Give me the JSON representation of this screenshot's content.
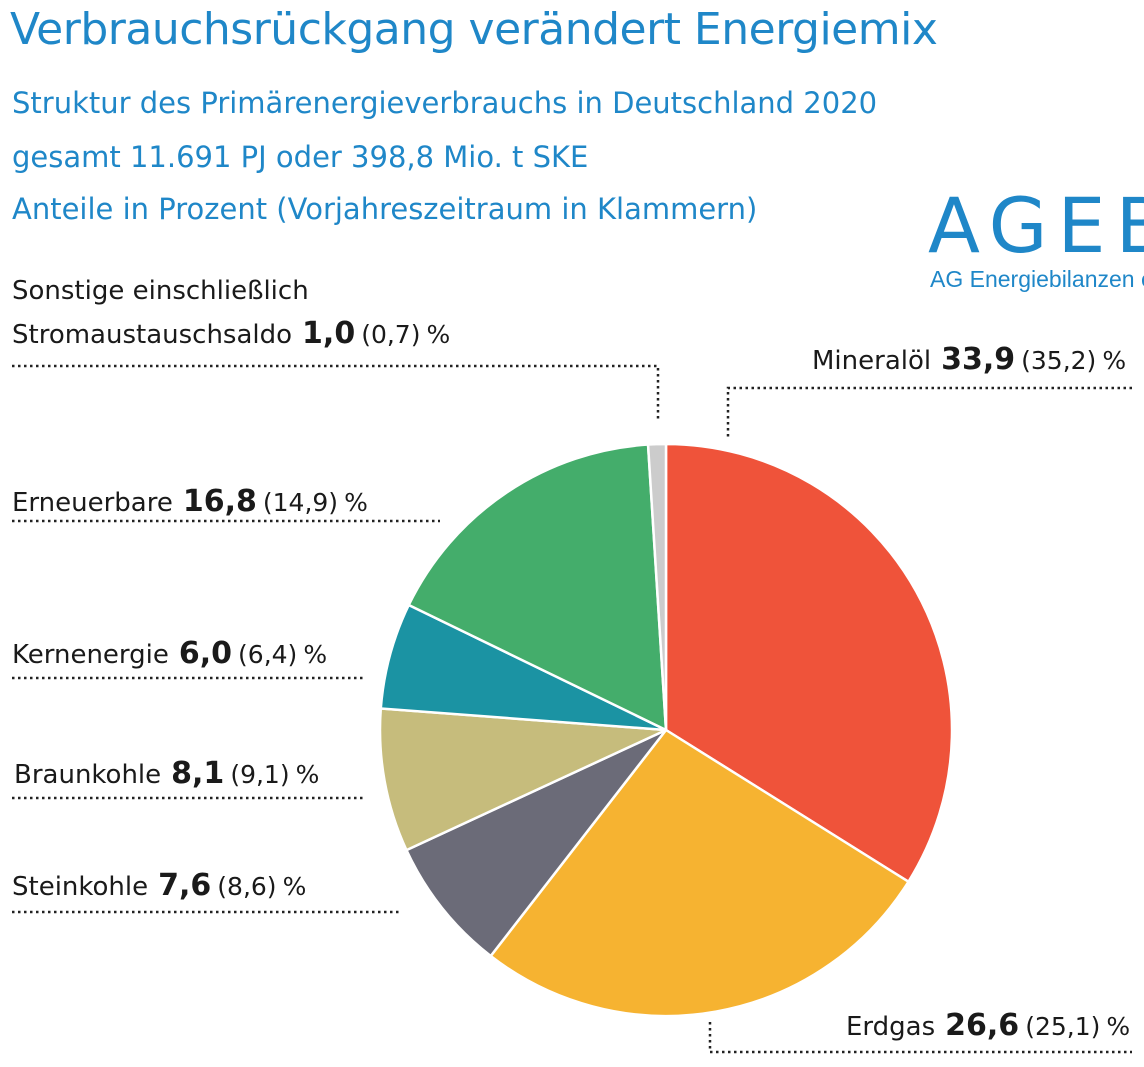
{
  "header": {
    "title": "Verbrauchsrückgang verändert Energiemix",
    "subtitle_1": "Struktur des Primärenergieverbrauchs in Deutschland 2020",
    "subtitle_2": "gesamt 11.691 PJ oder 398,8 Mio. t SKE",
    "subtitle_3": "Anteile in Prozent (Vorjahreszeitraum in Klammern)"
  },
  "logo": {
    "text": "AGEB",
    "subtext": "AG Energiebilanzen e.V."
  },
  "unit": "%",
  "labels": {
    "sonstige_line1": "Sonstige einschließlich",
    "sonstige_line2": "Stromaustauschsaldo",
    "sonstige_value": "1,0",
    "sonstige_prev": "(0,7)",
    "mineraloel_name": "Mineralöl",
    "mineraloel_value": "33,9",
    "mineraloel_prev": "(35,2)",
    "erneuerbare_name": "Erneuerbare",
    "erneuerbare_value": "16,8",
    "erneuerbare_prev": "(14,9)",
    "kernenergie_name": "Kernenergie",
    "kernenergie_value": "6,0",
    "kernenergie_prev": "(6,4)",
    "braunkohle_name": "Braunkohle",
    "braunkohle_value": "8,1",
    "braunkohle_prev": "(9,1)",
    "steinkohle_name": "Steinkohle",
    "steinkohle_value": "7,6",
    "steinkohle_prev": "(8,6)",
    "erdgas_name": "Erdgas",
    "erdgas_value": "26,6",
    "erdgas_prev": "(25,1)"
  },
  "chart_data": {
    "type": "pie",
    "title": "Struktur des Primärenergieverbrauchs in Deutschland 2020",
    "categories": [
      "Mineralöl",
      "Erdgas",
      "Steinkohle",
      "Braunkohle",
      "Kernenergie",
      "Erneuerbare",
      "Sonstige einschließlich Stromaustauschsaldo"
    ],
    "values": [
      33.9,
      26.6,
      7.6,
      8.1,
      6.0,
      16.8,
      1.0
    ],
    "previous_year_values": [
      35.2,
      25.1,
      8.6,
      9.1,
      6.4,
      14.9,
      0.7
    ],
    "colors": [
      "#ef533a",
      "#f6b331",
      "#6b6b78",
      "#c6bc7c",
      "#1b93a3",
      "#44ad6b",
      "#cccccc"
    ],
    "start_angle_deg": 0,
    "direction": "clockwise"
  }
}
